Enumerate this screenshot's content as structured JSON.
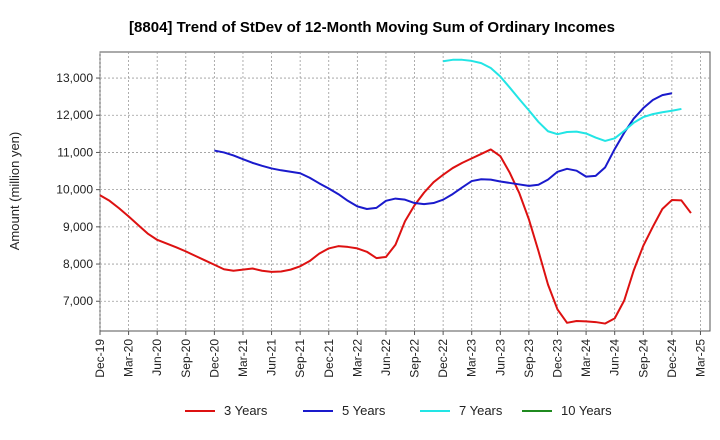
{
  "chart_data": {
    "type": "line",
    "title": "[8804]  Trend of StDev of 12-Month Moving Sum of Ordinary Incomes",
    "xlabel": "",
    "ylabel": "Amount (million yen)",
    "ylim": [
      6200,
      13700
    ],
    "yticks": [
      7000,
      8000,
      9000,
      10000,
      11000,
      12000,
      13000
    ],
    "ytick_labels": [
      "7,000",
      "8,000",
      "9,000",
      "10,000",
      "11,000",
      "12,000",
      "13,000"
    ],
    "x_start": "Dec-19",
    "x_count": 64,
    "x_tick_labels": [
      "Dec-19",
      "Mar-20",
      "Jun-20",
      "Sep-20",
      "Dec-20",
      "Mar-21",
      "Jun-21",
      "Sep-21",
      "Dec-21",
      "Mar-22",
      "Jun-22",
      "Sep-22",
      "Dec-22",
      "Mar-23",
      "Jun-23",
      "Sep-23",
      "Dec-23",
      "Mar-24",
      "Jun-24",
      "Sep-24",
      "Dec-24",
      "Mar-25"
    ],
    "grid": true,
    "legend_position": "bottom",
    "series": [
      {
        "name": "3 Years",
        "color": "#dd1111",
        "start_index": 0,
        "values": [
          9850,
          9700,
          9500,
          9280,
          9050,
          8820,
          8650,
          8550,
          8450,
          8340,
          8220,
          8100,
          7980,
          7860,
          7820,
          7850,
          7880,
          7820,
          7790,
          7800,
          7850,
          7940,
          8080,
          8280,
          8420,
          8480,
          8460,
          8420,
          8330,
          8160,
          8190,
          8520,
          9150,
          9580,
          9920,
          10200,
          10400,
          10580,
          10720,
          10840,
          10960,
          11080,
          10900,
          10450,
          9900,
          9200,
          8350,
          7450,
          6780,
          6420,
          6470,
          6460,
          6440,
          6400,
          6540,
          7020,
          7830,
          8490,
          9000,
          9480,
          9720,
          9710,
          9370
        ]
      },
      {
        "name": "5 Years",
        "color": "#1a1acc",
        "start_index": 12,
        "values": [
          11050,
          11000,
          10920,
          10820,
          10720,
          10640,
          10570,
          10520,
          10480,
          10440,
          10320,
          10170,
          10030,
          9880,
          9700,
          9550,
          9480,
          9510,
          9700,
          9760,
          9730,
          9640,
          9610,
          9640,
          9730,
          9880,
          10060,
          10230,
          10280,
          10270,
          10220,
          10180,
          10140,
          10100,
          10130,
          10270,
          10480,
          10560,
          10510,
          10350,
          10370,
          10600,
          11090,
          11530,
          11910,
          12190,
          12410,
          12540,
          12590
        ]
      },
      {
        "name": "7 Years",
        "color": "#22e5e5",
        "start_index": 36,
        "values": [
          13450,
          13490,
          13490,
          13460,
          13400,
          13270,
          13040,
          12740,
          12430,
          12130,
          11820,
          11570,
          11490,
          11550,
          11560,
          11510,
          11400,
          11310,
          11380,
          11580,
          11800,
          11950,
          12030,
          12080,
          12120,
          12170
        ]
      },
      {
        "name": "10 Years",
        "color": "#1f8a1f",
        "start_index": 0,
        "values": []
      }
    ]
  }
}
